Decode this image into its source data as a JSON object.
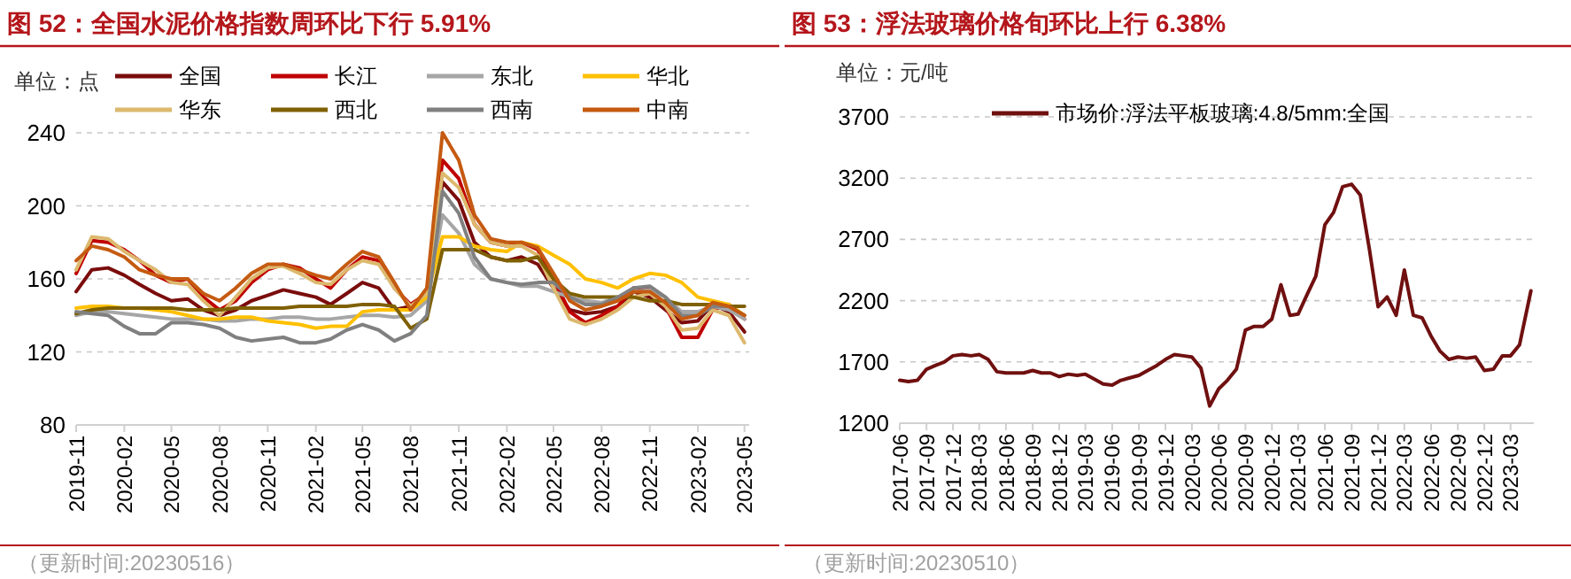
{
  "chart_data": [
    {
      "type": "line",
      "title": "图 52：全国水泥价格指数周环比下行 5.91%",
      "ylabel": "单位：点",
      "annotations": [
        "（更新时间:20230516）"
      ],
      "grid": "y",
      "legend": "top",
      "x": [
        "2019-11",
        "2019-12",
        "2020-01",
        "2020-02",
        "2020-03",
        "2020-04",
        "2020-05",
        "2020-06",
        "2020-07",
        "2020-08",
        "2020-09",
        "2020-10",
        "2020-11",
        "2020-12",
        "2021-01",
        "2021-02",
        "2021-03",
        "2021-04",
        "2021-05",
        "2021-06",
        "2021-07",
        "2021-08",
        "2021-09",
        "2021-10",
        "2021-11",
        "2021-12",
        "2022-01",
        "2022-02",
        "2022-03",
        "2022-04",
        "2022-05",
        "2022-06",
        "2022-07",
        "2022-08",
        "2022-09",
        "2022-10",
        "2022-11",
        "2022-12",
        "2023-01",
        "2023-02",
        "2023-03",
        "2023-04",
        "2023-05"
      ],
      "xlim": [
        "2019-11",
        "2023-05-10"
      ],
      "xticks": [
        "2019-11",
        "2020-02",
        "2020-05",
        "2020-08",
        "2020-11",
        "2021-02",
        "2021-05",
        "2021-08",
        "2021-11",
        "2022-02",
        "2022-05",
        "2022-08",
        "2022-11",
        "2023-02",
        "2023-05"
      ],
      "ylim": [
        80,
        240
      ],
      "yticks": [
        80,
        120,
        160,
        200,
        240
      ],
      "series": [
        {
          "name": "全国",
          "color": "#7b0c0c",
          "values": [
            153,
            165,
            166,
            162,
            157,
            152,
            148,
            149,
            143,
            140,
            143,
            148,
            151,
            154,
            152,
            150,
            146,
            152,
            158,
            155,
            143,
            145,
            150,
            213,
            203,
            180,
            172,
            170,
            172,
            168,
            155,
            143,
            141,
            142,
            145,
            153,
            150,
            143,
            136,
            137,
            146,
            142,
            131
          ]
        },
        {
          "name": "长江",
          "color": "#c00000",
          "values": [
            163,
            181,
            180,
            176,
            170,
            162,
            158,
            160,
            150,
            143,
            148,
            158,
            165,
            168,
            166,
            160,
            155,
            165,
            172,
            170,
            155,
            146,
            152,
            225,
            215,
            190,
            180,
            178,
            180,
            176,
            160,
            142,
            136,
            140,
            145,
            155,
            155,
            145,
            128,
            128,
            143,
            146,
            138
          ]
        },
        {
          "name": "东北",
          "color": "#a6a6a6",
          "values": [
            140,
            142,
            142,
            141,
            140,
            139,
            138,
            138,
            138,
            137,
            137,
            138,
            138,
            139,
            139,
            138,
            138,
            139,
            140,
            140,
            139,
            140,
            148,
            195,
            185,
            168,
            160,
            158,
            156,
            156,
            153,
            150,
            148,
            147,
            150,
            153,
            154,
            150,
            142,
            142,
            145,
            143,
            138
          ]
        },
        {
          "name": "华北",
          "color": "#ffc000",
          "values": [
            144,
            145,
            145,
            144,
            144,
            143,
            142,
            140,
            138,
            138,
            139,
            139,
            137,
            136,
            135,
            133,
            134,
            134,
            142,
            143,
            143,
            143,
            150,
            183,
            183,
            178,
            176,
            175,
            180,
            178,
            173,
            168,
            160,
            158,
            155,
            160,
            163,
            162,
            158,
            150,
            148,
            146,
            140
          ]
        },
        {
          "name": "华东",
          "color": "#dcb96e",
          "values": [
            165,
            183,
            182,
            175,
            170,
            165,
            158,
            157,
            148,
            140,
            150,
            160,
            166,
            167,
            163,
            158,
            157,
            165,
            170,
            168,
            155,
            145,
            152,
            218,
            210,
            190,
            180,
            178,
            178,
            173,
            155,
            138,
            135,
            138,
            143,
            150,
            152,
            145,
            132,
            133,
            143,
            140,
            125
          ]
        },
        {
          "name": "西北",
          "color": "#7f6000",
          "values": [
            141,
            143,
            144,
            144,
            144,
            144,
            144,
            143,
            143,
            143,
            144,
            144,
            144,
            144,
            145,
            145,
            145,
            145,
            146,
            146,
            145,
            133,
            138,
            176,
            176,
            176,
            172,
            170,
            170,
            172,
            160,
            152,
            150,
            150,
            150,
            150,
            148,
            148,
            146,
            146,
            146,
            145,
            145
          ]
        },
        {
          "name": "西南",
          "color": "#808080",
          "values": [
            142,
            141,
            140,
            134,
            130,
            130,
            136,
            136,
            135,
            133,
            128,
            126,
            127,
            128,
            125,
            125,
            127,
            132,
            135,
            132,
            126,
            130,
            140,
            208,
            196,
            172,
            160,
            158,
            157,
            158,
            158,
            150,
            146,
            146,
            150,
            155,
            156,
            150,
            140,
            140,
            145,
            145,
            140
          ]
        },
        {
          "name": "中南",
          "color": "#c55a11",
          "values": [
            170,
            178,
            176,
            172,
            165,
            162,
            160,
            160,
            152,
            148,
            155,
            163,
            168,
            168,
            165,
            162,
            160,
            168,
            175,
            172,
            158,
            143,
            155,
            240,
            225,
            195,
            182,
            180,
            180,
            177,
            163,
            148,
            143,
            145,
            148,
            153,
            153,
            147,
            138,
            140,
            147,
            145,
            140
          ]
        }
      ]
    },
    {
      "type": "line",
      "title": "图 53：浮法玻璃价格旬环比上行 6.38%",
      "ylabel": "单位：元/吨",
      "annotations": [
        "（更新时间:20230510）"
      ],
      "grid": "y",
      "legend": "top",
      "x": [
        "2017-06",
        "2017-07",
        "2017-08",
        "2017-09",
        "2017-10",
        "2017-11",
        "2017-12",
        "2018-01",
        "2018-02",
        "2018-03",
        "2018-04",
        "2018-05",
        "2018-06",
        "2018-07",
        "2018-08",
        "2018-09",
        "2018-10",
        "2018-11",
        "2018-12",
        "2019-01",
        "2019-02",
        "2019-03",
        "2019-04",
        "2019-05",
        "2019-06",
        "2019-07",
        "2019-08",
        "2019-09",
        "2019-10",
        "2019-11",
        "2019-12",
        "2020-01",
        "2020-02",
        "2020-03",
        "2020-04",
        "2020-05",
        "2020-06",
        "2020-07",
        "2020-08",
        "2020-09",
        "2020-10",
        "2020-11",
        "2020-12",
        "2021-01",
        "2021-02",
        "2021-03",
        "2021-04",
        "2021-05",
        "2021-06",
        "2021-07",
        "2021-08",
        "2021-09",
        "2021-10",
        "2021-11",
        "2021-12",
        "2022-01",
        "2022-02",
        "2022-03",
        "2022-04",
        "2022-05",
        "2022-06",
        "2022-07",
        "2022-08",
        "2022-09",
        "2022-10",
        "2022-11",
        "2022-12",
        "2023-01",
        "2023-02",
        "2023-03",
        "2023-04",
        "2023-05-10"
      ],
      "xlim": [
        "2017-06",
        "2023-05-20"
      ],
      "xticks": [
        "2017-06",
        "2017-09",
        "2017-12",
        "2018-03",
        "2018-06",
        "2018-09",
        "2018-12",
        "2019-03",
        "2019-06",
        "2019-09",
        "2019-12",
        "2020-03",
        "2020-06",
        "2020-09",
        "2020-12",
        "2021-03",
        "2021-06",
        "2021-09",
        "2021-12",
        "2022-03",
        "2022-06",
        "2022-09",
        "2022-12",
        "2023-03"
      ],
      "ylim": [
        1200,
        3700
      ],
      "yticks": [
        1200,
        1700,
        2200,
        2700,
        3200,
        3700
      ],
      "series": [
        {
          "name": "市场价:浮法平板玻璃:4.8/5mm:全国",
          "color": "#701010",
          "values": [
            1550,
            1540,
            1550,
            1640,
            1670,
            1700,
            1750,
            1760,
            1750,
            1760,
            1720,
            1620,
            1610,
            1610,
            1610,
            1630,
            1610,
            1610,
            1580,
            1600,
            1590,
            1600,
            1560,
            1520,
            1510,
            1550,
            1570,
            1590,
            1630,
            1670,
            1720,
            1760,
            1750,
            1740,
            1650,
            1340,
            1480,
            1550,
            1640,
            1960,
            1990,
            1990,
            2050,
            2330,
            2080,
            2090,
            2250,
            2400,
            2820,
            2920,
            3130,
            3150,
            3060,
            2620,
            2150,
            2230,
            2080,
            2450,
            2080,
            2060,
            1910,
            1790,
            1720,
            1740,
            1730,
            1740,
            1630,
            1640,
            1750,
            1750,
            1840,
            2280
          ]
        }
      ]
    }
  ]
}
